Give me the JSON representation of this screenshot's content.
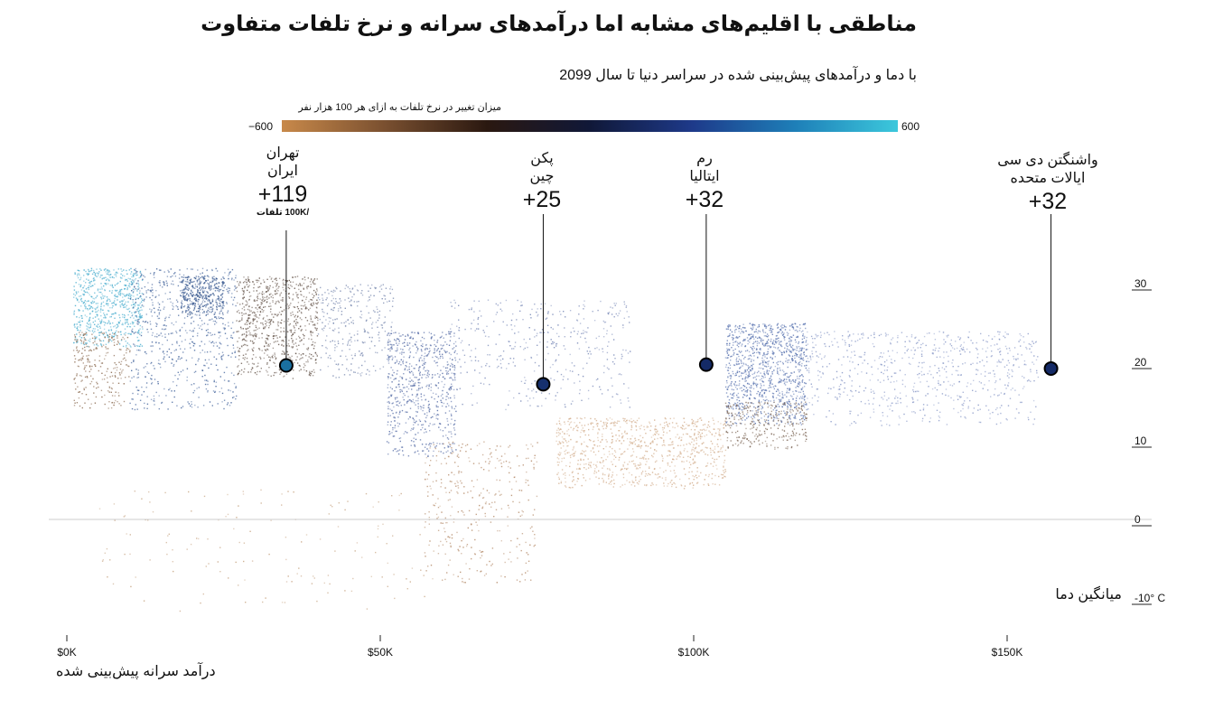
{
  "title": "مناطقی با اقلیم‌های مشابه اما درآمدهای سرانه و نرخ تلفات متفاوت",
  "subtitle": "با دما و درآمدهای پیش‌بینی شده در سراسر دنیا تا سال 2099",
  "legend": {
    "title": "میزان تغییر در نرخ تلفات به ازای هر 100 هزار نفر",
    "min_label": "−600",
    "max_label": "600",
    "min": -600,
    "max": 600,
    "colors": [
      "#c8894a",
      "#7a5030",
      "#2a1810",
      "#101838",
      "#1e3a8a",
      "#1e7fb8",
      "#3cc8dc"
    ]
  },
  "chart_data": {
    "type": "scatter",
    "title": "مناطقی با اقلیم‌های مشابه اما درآمدهای سرانه و نرخ تلفات متفاوت",
    "xlabel": "درآمد سرانه پیش‌بینی شده",
    "ylabel": "میانگین دما",
    "xlim": [
      -2000,
      175000
    ],
    "ylim": [
      -14,
      34
    ],
    "x_ticks": [
      {
        "value": 0,
        "label": "$0K"
      },
      {
        "value": 50000,
        "label": "$50K"
      },
      {
        "value": 100000,
        "label": "$100K"
      },
      {
        "value": 150000,
        "label": "$150K"
      }
    ],
    "y_ticks": [
      {
        "value": 30,
        "label": "30"
      },
      {
        "value": 20,
        "label": "20"
      },
      {
        "value": 10,
        "label": "10"
      },
      {
        "value": 0,
        "label": "0"
      },
      {
        "value": -10,
        "label": "-10° C"
      }
    ],
    "zero_line": 0,
    "highlighted": [
      {
        "city": "تهران",
        "country": "ایران",
        "value_label": "+119",
        "unit": "/100K تلفات",
        "x": 35000,
        "y": 19.6,
        "color": "#1a6fa0"
      },
      {
        "city": "پکن",
        "country": "چین",
        "value_label": "+25",
        "x": 76000,
        "y": 17.2,
        "color": "#16306e"
      },
      {
        "city": "رم",
        "country": "ایتالیا",
        "value_label": "+32",
        "x": 102000,
        "y": 19.7,
        "color": "#142a66"
      },
      {
        "city": "واشنگتن دی سی",
        "country": "ایالات متحده",
        "value_label": "+32",
        "x": 157000,
        "y": 19.2,
        "color": "#142a66"
      }
    ],
    "clusters": [
      {
        "x": [
          1000,
          12000
        ],
        "y": [
          22,
          32
        ],
        "n": 700,
        "color": "#4fb0d0"
      },
      {
        "x": [
          1000,
          10000
        ],
        "y": [
          14,
          24
        ],
        "n": 250,
        "color": "#8a6a50"
      },
      {
        "x": [
          10000,
          27000
        ],
        "y": [
          14,
          32
        ],
        "n": 700,
        "color": "#4a6aa0"
      },
      {
        "x": [
          18000,
          25000
        ],
        "y": [
          26,
          31
        ],
        "n": 350,
        "color": "#3a5a90"
      },
      {
        "x": [
          27000,
          40000
        ],
        "y": [
          18,
          31
        ],
        "n": 800,
        "color": "#6a5a50"
      },
      {
        "x": [
          40000,
          52000
        ],
        "y": [
          18,
          30
        ],
        "n": 300,
        "color": "#7a8ab0"
      },
      {
        "x": [
          51000,
          62000
        ],
        "y": [
          8,
          24
        ],
        "n": 700,
        "color": "#5a70a8"
      },
      {
        "x": [
          57000,
          75000
        ],
        "y": [
          -8,
          10
        ],
        "n": 350,
        "color": "#b89070"
      },
      {
        "x": [
          61000,
          90000
        ],
        "y": [
          14,
          28
        ],
        "n": 400,
        "color": "#7a8ab8"
      },
      {
        "x": [
          78000,
          105000
        ],
        "y": [
          4,
          13
        ],
        "n": 900,
        "color": "#d4b090"
      },
      {
        "x": [
          105000,
          118000
        ],
        "y": [
          12,
          25
        ],
        "n": 1100,
        "color": "#5a74b0"
      },
      {
        "x": [
          105000,
          118000
        ],
        "y": [
          9,
          15
        ],
        "n": 300,
        "color": "#806a5a"
      },
      {
        "x": [
          118000,
          155000
        ],
        "y": [
          12,
          24
        ],
        "n": 700,
        "color": "#8a9ac8"
      },
      {
        "x": [
          5000,
          60000
        ],
        "y": [
          -12,
          4
        ],
        "n": 150,
        "color": "#c9a888"
      }
    ]
  }
}
